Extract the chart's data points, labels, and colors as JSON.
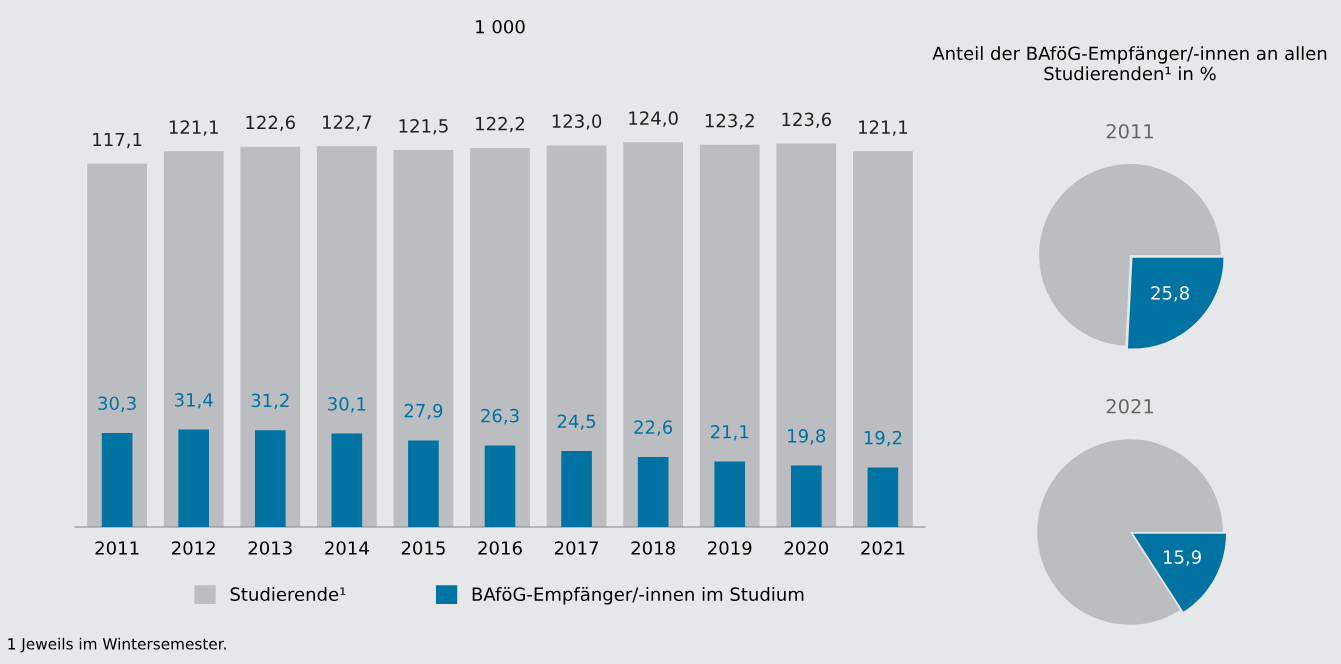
{
  "chart_data": [
    {
      "type": "bar",
      "title": "1 000",
      "categories": [
        "2011",
        "2012",
        "2013",
        "2014",
        "2015",
        "2016",
        "2017",
        "2018",
        "2019",
        "2020",
        "2021"
      ],
      "series": [
        {
          "name": "Studierende¹",
          "color": "#bcbdc1",
          "values": [
            117.1,
            121.1,
            122.6,
            122.7,
            121.5,
            122.2,
            123.0,
            124.0,
            123.2,
            123.6,
            121.1
          ],
          "value_labels": [
            "117,1",
            "121,1",
            "122,6",
            "122,7",
            "121,5",
            "122,2",
            "123,0",
            "124,0",
            "123,2",
            "123,6",
            "121,1"
          ]
        },
        {
          "name": "BAföG-Empfänger/-innen im Studium",
          "color": "#0073a3",
          "values": [
            30.3,
            31.4,
            31.2,
            30.1,
            27.9,
            26.3,
            24.5,
            22.6,
            21.1,
            19.8,
            19.2
          ],
          "value_labels": [
            "30,3",
            "31,4",
            "31,2",
            "30,1",
            "27,9",
            "26,3",
            "24,5",
            "22,6",
            "21,1",
            "19,8",
            "19,2"
          ]
        }
      ],
      "legend": "bottom",
      "grid": false,
      "annotations": [
        "1 Jeweils im Wintersemester."
      ]
    },
    {
      "type": "pie",
      "title": "Anteil der BAföG-Empfänger/-innen an allen Studierenden¹ in %",
      "subtitle": "2011",
      "categories": [
        null,
        null
      ],
      "values": [
        25.8,
        74.2
      ],
      "colors": [
        "#0073a3",
        "#bcbdc1"
      ],
      "value_labels": [
        "25,8",
        null
      ]
    },
    {
      "type": "pie",
      "subtitle": "2021",
      "categories": [
        null,
        null
      ],
      "values": [
        15.9,
        84.1
      ],
      "colors": [
        "#0073a3",
        "#bcbdc1"
      ],
      "value_labels": [
        "15,9",
        null
      ]
    }
  ]
}
